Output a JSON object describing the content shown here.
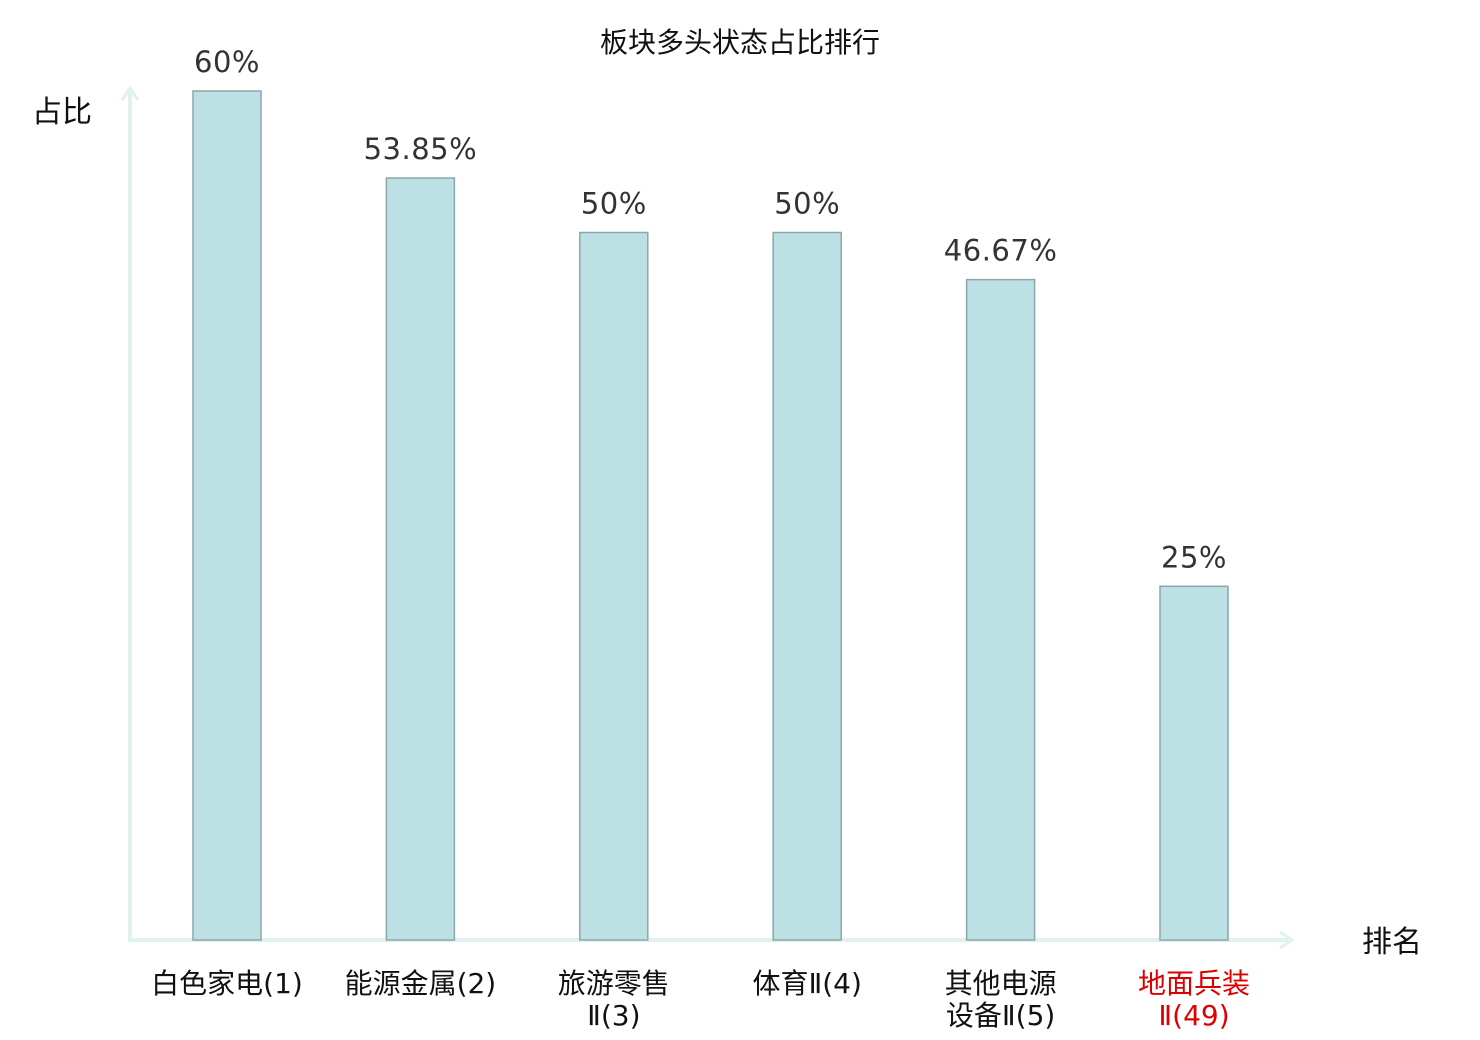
{
  "chart_data": {
    "type": "bar",
    "title": "板块多头状态占比排行",
    "ylabel": "占比",
    "xlabel": "排名",
    "ylim": [
      0,
      60
    ],
    "grid": false,
    "categories": [
      {
        "lines": [
          "白色家电(1)"
        ],
        "highlight": false
      },
      {
        "lines": [
          "能源金属(2)"
        ],
        "highlight": false
      },
      {
        "lines": [
          "旅游零售",
          "Ⅱ(3)"
        ],
        "highlight": false
      },
      {
        "lines": [
          "体育Ⅱ(4)"
        ],
        "highlight": false
      },
      {
        "lines": [
          "其他电源",
          "设备Ⅱ(5)"
        ],
        "highlight": false
      },
      {
        "lines": [
          "地面兵装",
          "Ⅱ(49)"
        ],
        "highlight": true
      }
    ],
    "values": [
      60,
      53.85,
      50,
      50,
      46.67,
      25
    ],
    "value_labels": [
      "60%",
      "53.85%",
      "50%",
      "50%",
      "46.67%",
      "25%"
    ]
  },
  "colors": {
    "bar_fill": "#bce0e3",
    "bar_stroke": "#8aa8ab",
    "axis": "#e0f2f0",
    "label_normal": "#111111",
    "label_highlight": "#dd0000",
    "value_label": "#333333"
  }
}
